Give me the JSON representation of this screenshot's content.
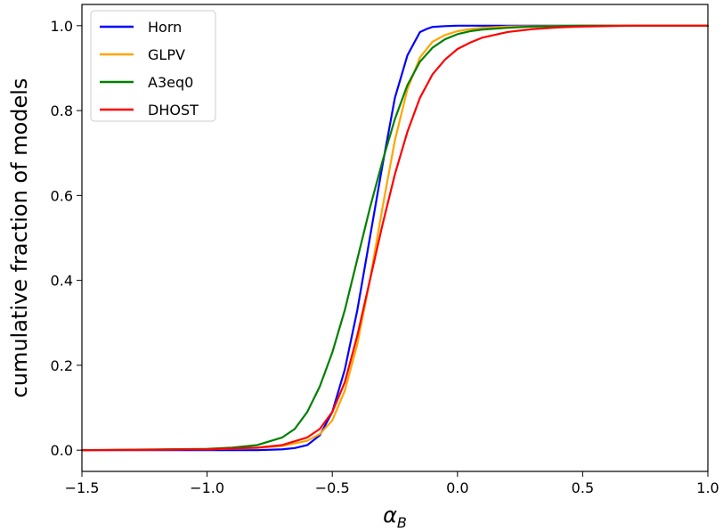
{
  "chart_data": {
    "type": "line",
    "xlabel": "α",
    "xlabel_sub": "B",
    "ylabel": "cumulative fraction of models",
    "xlim": [
      -1.5,
      1.0
    ],
    "ylim": [
      -0.05,
      1.05
    ],
    "xticks": [
      -1.5,
      -1.0,
      -0.5,
      0.0,
      0.5,
      1.0
    ],
    "xtick_labels": [
      "−1.5",
      "−1.0",
      "−0.5",
      "0.0",
      "0.5",
      "1.0"
    ],
    "yticks": [
      0.0,
      0.2,
      0.4,
      0.6,
      0.8,
      1.0
    ],
    "ytick_labels": [
      "0.0",
      "0.2",
      "0.4",
      "0.6",
      "0.8",
      "1.0"
    ],
    "grid": false,
    "legend_position": "top-left",
    "series": [
      {
        "name": "Horn",
        "color": "#0000ff",
        "x": [
          -1.5,
          -1.0,
          -0.8,
          -0.7,
          -0.65,
          -0.6,
          -0.55,
          -0.5,
          -0.45,
          -0.4,
          -0.35,
          -0.3,
          -0.25,
          -0.2,
          -0.15,
          -0.12,
          -0.1,
          -0.05,
          0.0,
          0.1,
          0.3,
          1.0
        ],
        "y": [
          0.0,
          0.0,
          0.0,
          0.002,
          0.005,
          0.012,
          0.035,
          0.09,
          0.19,
          0.33,
          0.5,
          0.67,
          0.83,
          0.93,
          0.985,
          0.993,
          0.997,
          0.999,
          1.0,
          1.0,
          1.0,
          1.0
        ]
      },
      {
        "name": "GLPV",
        "color": "#ffa500",
        "x": [
          -1.5,
          -1.0,
          -0.8,
          -0.7,
          -0.6,
          -0.55,
          -0.5,
          -0.45,
          -0.4,
          -0.35,
          -0.3,
          -0.25,
          -0.2,
          -0.15,
          -0.1,
          -0.05,
          0.0,
          0.05,
          0.1,
          0.2,
          0.3,
          0.5,
          1.0
        ],
        "y": [
          0.0,
          0.002,
          0.005,
          0.01,
          0.022,
          0.038,
          0.07,
          0.14,
          0.25,
          0.4,
          0.57,
          0.73,
          0.85,
          0.925,
          0.962,
          0.978,
          0.987,
          0.992,
          0.995,
          0.998,
          0.999,
          1.0,
          1.0
        ]
      },
      {
        "name": "A3eq0",
        "color": "#008000",
        "x": [
          -1.5,
          -1.0,
          -0.9,
          -0.8,
          -0.7,
          -0.65,
          -0.6,
          -0.55,
          -0.5,
          -0.45,
          -0.4,
          -0.35,
          -0.3,
          -0.25,
          -0.2,
          -0.15,
          -0.1,
          -0.05,
          0.0,
          0.05,
          0.1,
          0.2,
          0.3,
          0.5,
          1.0
        ],
        "y": [
          0.0,
          0.003,
          0.006,
          0.012,
          0.03,
          0.05,
          0.09,
          0.15,
          0.23,
          0.33,
          0.45,
          0.57,
          0.68,
          0.78,
          0.86,
          0.915,
          0.948,
          0.968,
          0.98,
          0.987,
          0.991,
          0.995,
          0.998,
          1.0,
          1.0
        ]
      },
      {
        "name": "DHOST",
        "color": "#ff0000",
        "x": [
          -1.5,
          -1.0,
          -0.8,
          -0.7,
          -0.6,
          -0.55,
          -0.5,
          -0.45,
          -0.4,
          -0.35,
          -0.3,
          -0.25,
          -0.2,
          -0.15,
          -0.1,
          -0.05,
          0.0,
          0.05,
          0.1,
          0.2,
          0.3,
          0.4,
          0.5,
          0.7,
          1.0
        ],
        "y": [
          0.0,
          0.002,
          0.006,
          0.012,
          0.03,
          0.05,
          0.09,
          0.16,
          0.27,
          0.4,
          0.53,
          0.65,
          0.75,
          0.83,
          0.885,
          0.92,
          0.945,
          0.96,
          0.972,
          0.985,
          0.992,
          0.996,
          0.998,
          1.0,
          1.0
        ]
      }
    ]
  }
}
